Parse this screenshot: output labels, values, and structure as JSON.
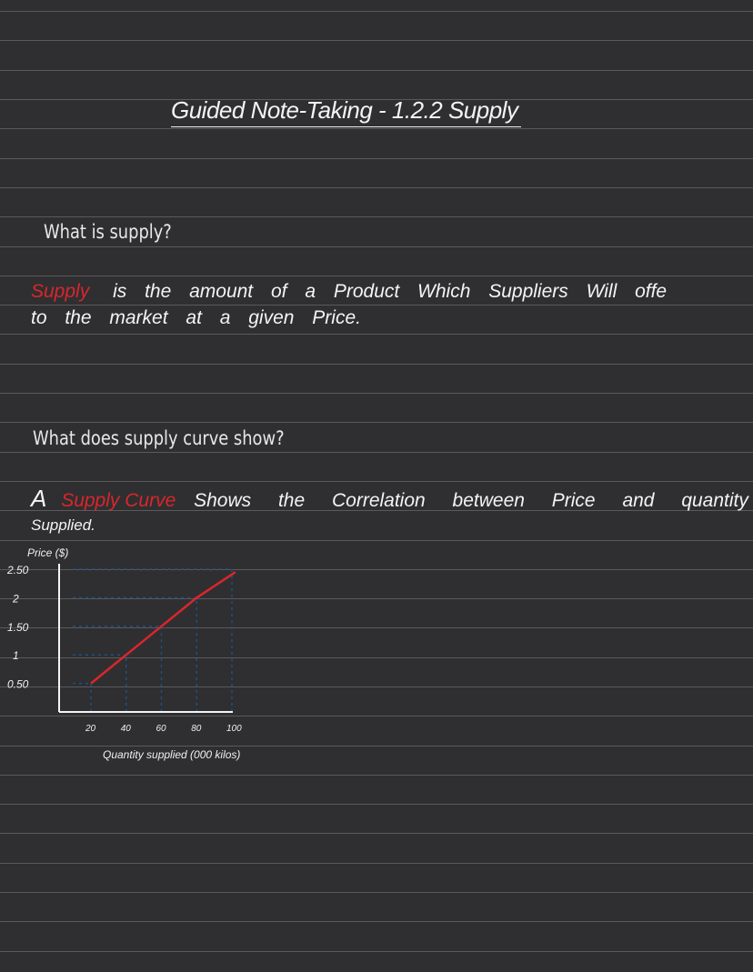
{
  "page": {
    "title": "Guided Note-Taking - 1.2.2 Supply",
    "colors": {
      "background": "#2f2f31",
      "ruled_lines": "#5a5a5c",
      "highlight": "#d9262b",
      "ink": "#f4f4f4"
    }
  },
  "section1": {
    "question": "What is supply?",
    "answer_term": "Supply",
    "answer_line1": "is the amount of a Product Which Suppliers Will offe",
    "answer_line2": "to the market at a given Price."
  },
  "section2": {
    "question": "What does supply curve show?",
    "answer_a": "A",
    "answer_term": "Supply Curve",
    "answer_line1": "Shows the Correlation between Price and quantity",
    "answer_line2": "Supplied."
  },
  "chart_data": {
    "type": "line",
    "xlabel": "Quantity supplied (000 kilos)",
    "ylabel": "Price ($)",
    "x_ticks": [
      "20",
      "40",
      "60",
      "80",
      "100"
    ],
    "y_ticks": [
      "0.50",
      "1",
      "1.50",
      "2",
      "2.50"
    ],
    "xlim": [
      0,
      100
    ],
    "ylim": [
      0,
      2.5
    ],
    "series": [
      {
        "color": "#d9262b",
        "x": [
          20,
          40,
          60,
          80,
          102
        ],
        "y": [
          0.5,
          1.0,
          1.5,
          2.0,
          2.45
        ]
      }
    ]
  }
}
